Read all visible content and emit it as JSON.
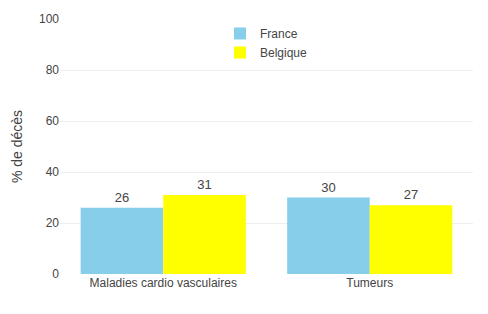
{
  "chart_data": {
    "type": "bar",
    "categories": [
      "Maladies cardio vasculaires",
      "Tumeurs"
    ],
    "series": [
      {
        "name": "France",
        "color": "#87CEEB",
        "values": [
          26,
          30
        ]
      },
      {
        "name": "Belgique",
        "color": "#FFFF00",
        "values": [
          31,
          27
        ]
      }
    ],
    "ylabel": "% de décès",
    "ylim": [
      0,
      100
    ],
    "yticks": [
      0,
      20,
      40,
      60,
      80,
      100
    ],
    "grid": true,
    "legend": "upper center",
    "data_labels": true
  }
}
